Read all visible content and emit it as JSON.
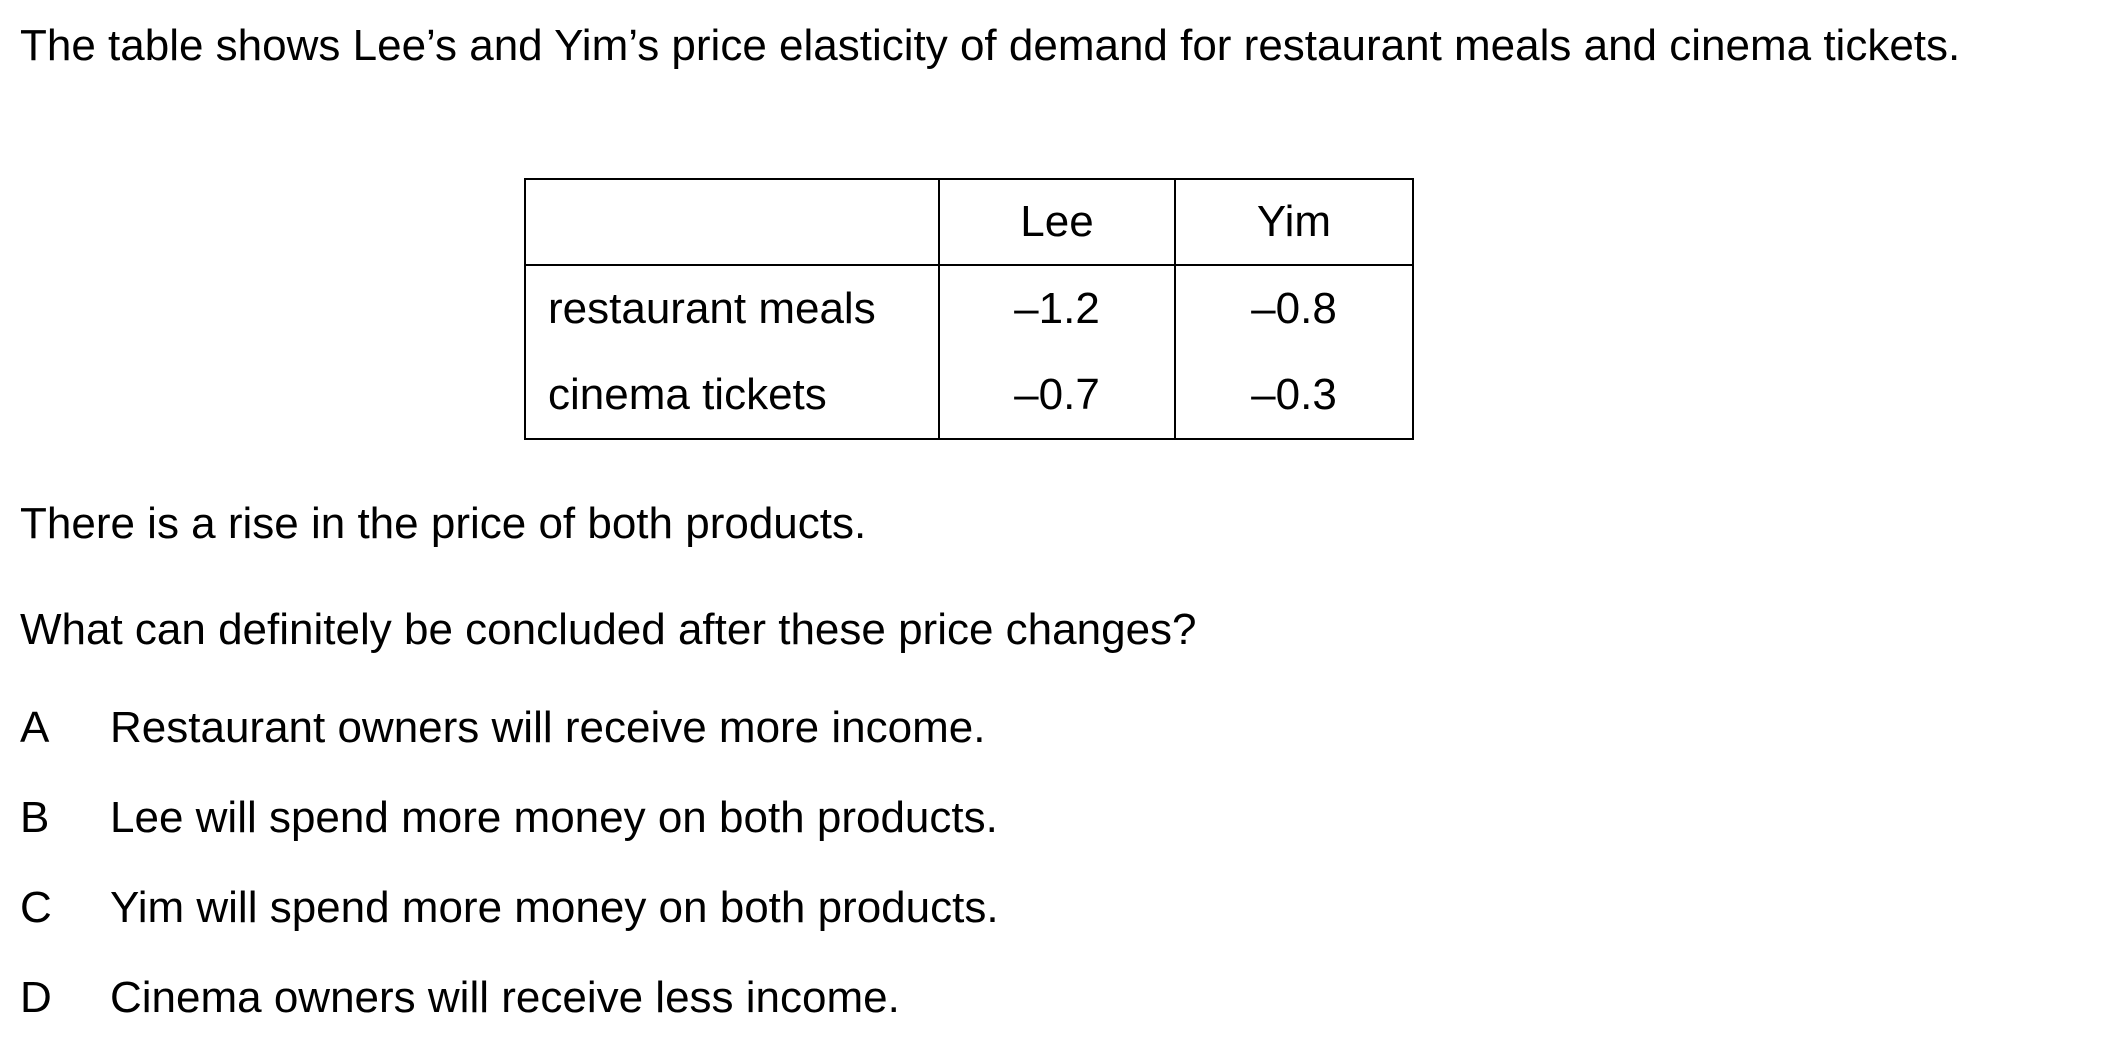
{
  "intro": "The table shows Lee’s and Yim’s price elasticity of demand for restaurant meals and cinema tickets.",
  "table": {
    "headers": [
      "",
      "Lee",
      "Yim"
    ],
    "rows": [
      {
        "label": "restaurant meals",
        "lee": "–1.2",
        "yim": "–0.8"
      },
      {
        "label": "cinema tickets",
        "lee": "–0.7",
        "yim": "–0.3"
      }
    ]
  },
  "statement": "There is a rise in the price of both products.",
  "question": "What can definitely be concluded after these price changes?",
  "options": [
    {
      "letter": "A",
      "text": "Restaurant owners will receive more income."
    },
    {
      "letter": "B",
      "text": "Lee will spend more money on both products."
    },
    {
      "letter": "C",
      "text": "Yim will spend more money on both products."
    },
    {
      "letter": "D",
      "text": "Cinema owners will receive less income."
    }
  ]
}
